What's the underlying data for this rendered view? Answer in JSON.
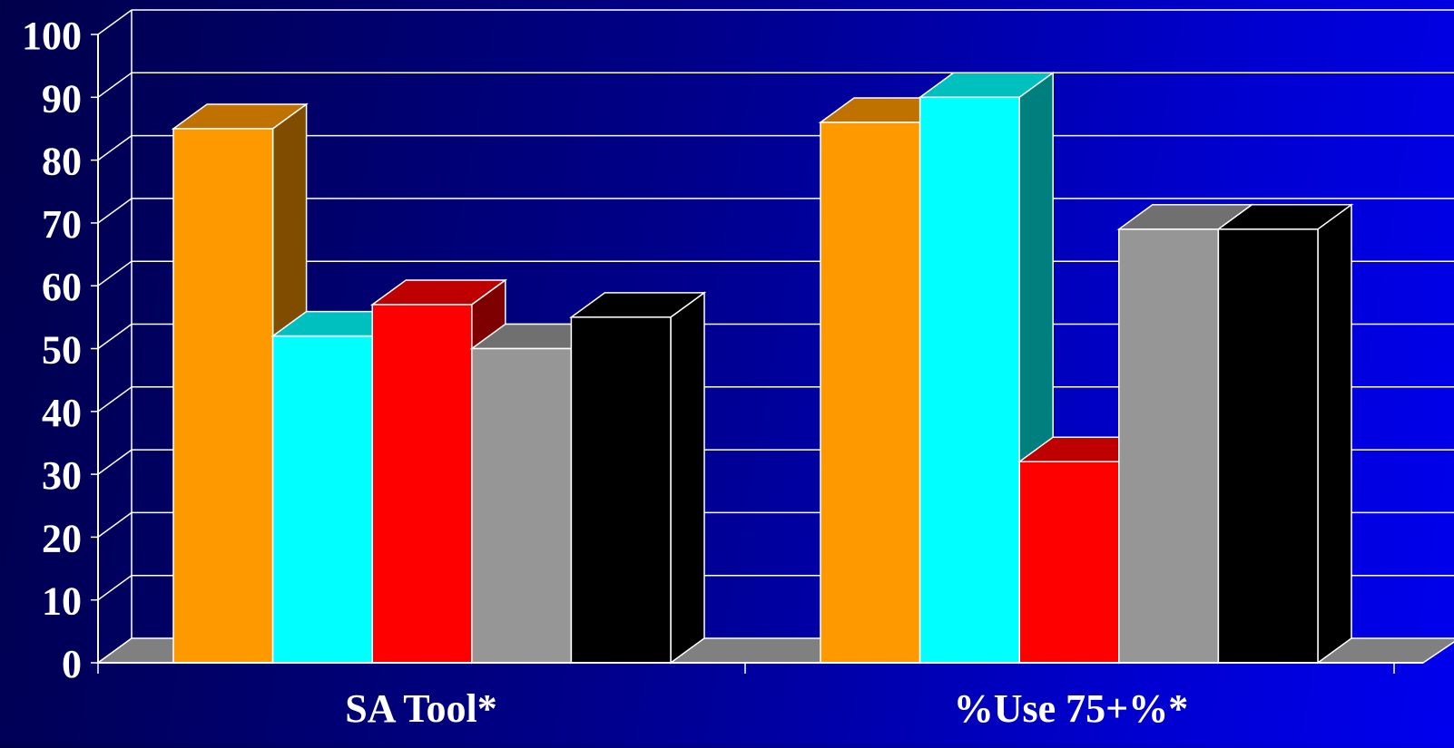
{
  "chart_data": {
    "type": "bar",
    "style": "3d-clustered-column",
    "categories": [
      "SA Tool*",
      "%Use 75+%*"
    ],
    "series": [
      {
        "values": [
          85,
          86
        ],
        "color": "#ff9900",
        "side_color": "#7f4c00",
        "top_color": "#bf7200"
      },
      {
        "values": [
          52,
          90
        ],
        "color": "#00ffff",
        "side_color": "#007f7f",
        "top_color": "#00bfbf"
      },
      {
        "values": [
          57,
          32
        ],
        "color": "#ff0000",
        "side_color": "#7f0000",
        "top_color": "#bf0000"
      },
      {
        "values": [
          50,
          69
        ],
        "color": "#969696",
        "side_color": "#4b4b4b",
        "top_color": "#707070"
      },
      {
        "values": [
          55,
          69
        ],
        "color": "#000000",
        "side_color": "#000000",
        "top_color": "#000000"
      }
    ],
    "yticks": [
      "0",
      "10",
      "20",
      "30",
      "40",
      "50",
      "60",
      "70",
      "80",
      "90",
      "100"
    ],
    "ylim": [
      0,
      100
    ],
    "grid": true,
    "legend": "none",
    "colors": {
      "grid": "#ffffff",
      "floor": "#808080",
      "outline": "#ffffff",
      "text": "#ffffff"
    }
  }
}
